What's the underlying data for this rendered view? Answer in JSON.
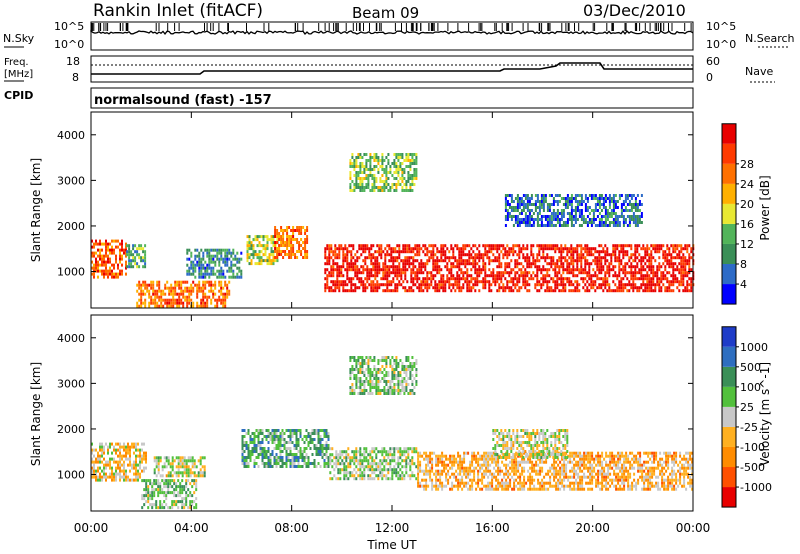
{
  "header": {
    "station": "Rankin Inlet (fitACF)",
    "beam": "Beam 09",
    "date": "03/Dec/2010"
  },
  "noise_panel": {
    "left_label": "N.Sky",
    "right_label": "N.Search",
    "left_ticks": [
      "10^5",
      "10^0"
    ],
    "right_ticks": [
      "10^5",
      "10^0"
    ]
  },
  "freq_panel": {
    "left_label_1": "Freq.",
    "left_label_2": "[MHz]",
    "right_label": "Nave",
    "left_ticks": [
      "18",
      "8"
    ],
    "right_ticks": [
      "60",
      "0"
    ]
  },
  "cpid": {
    "label": "CPID",
    "value": "normalsound (fast) -157"
  },
  "x_ticks": [
    "00:00",
    "04:00",
    "08:00",
    "12:00",
    "16:00",
    "20:00",
    "00:00"
  ],
  "x_label": "Time UT",
  "y_ticks": [
    "1000",
    "2000",
    "3000",
    "4000"
  ],
  "colors": {
    "power": [
      "#0000ff",
      "#2d6bc7",
      "#3a8f57",
      "#52b45a",
      "#e8e833",
      "#ffb000",
      "#ff7000",
      "#ff3a00",
      "#e80000"
    ],
    "velocity": [
      "#e80000",
      "#ff5000",
      "#ff8c00",
      "#ffb020",
      "#c8c8c8",
      "#52c03c",
      "#3a8f57",
      "#2e6ec0",
      "#1e3cc8"
    ]
  },
  "chart_data": [
    {
      "type": "heatmap",
      "title": "",
      "xlabel": "",
      "ylabel": "Slant Range [km]",
      "xlim": [
        0,
        24
      ],
      "ylim": [
        200,
        4500
      ],
      "colorbar": {
        "label": "Power [dB]",
        "ticks": [
          "4",
          "8",
          "12",
          "16",
          "20",
          "24",
          "28"
        ],
        "range": [
          0,
          30
        ]
      },
      "regions": [
        {
          "t0": 0.0,
          "t1": 1.4,
          "r0": 900,
          "r1": 1700,
          "value": 24
        },
        {
          "t0": 1.4,
          "t1": 2.2,
          "r0": 1100,
          "r1": 1600,
          "value": 10
        },
        {
          "t0": 1.8,
          "t1": 5.5,
          "r0": 250,
          "r1": 800,
          "value": 22
        },
        {
          "t0": 3.8,
          "t1": 6.0,
          "r0": 900,
          "r1": 1500,
          "value": 8
        },
        {
          "t0": 6.2,
          "t1": 7.4,
          "r0": 1200,
          "r1": 1800,
          "value": 14
        },
        {
          "t0": 7.3,
          "t1": 8.6,
          "r0": 1300,
          "r1": 2000,
          "value": 22
        },
        {
          "t0": 9.3,
          "t1": 24.0,
          "r0": 600,
          "r1": 1600,
          "value": 28
        },
        {
          "t0": 10.3,
          "t1": 13.0,
          "r0": 2800,
          "r1": 3600,
          "value": 12
        },
        {
          "t0": 16.5,
          "t1": 22.0,
          "r0": 2000,
          "r1": 2700,
          "value": 6
        }
      ]
    },
    {
      "type": "heatmap",
      "title": "",
      "xlabel": "Time UT",
      "ylabel": "Slant Range [km]",
      "xlim": [
        0,
        24
      ],
      "ylim": [
        200,
        4500
      ],
      "colorbar": {
        "label": "Velocity [m s^-1]",
        "ticks": [
          "-1000",
          "-500",
          "-100",
          "-25",
          "25",
          "100",
          "500",
          "1000"
        ],
        "range": [
          -1200,
          1200
        ]
      },
      "regions": [
        {
          "t0": 0.0,
          "t1": 2.2,
          "r0": 900,
          "r1": 1700,
          "value": -200
        },
        {
          "t0": 2.0,
          "t1": 4.2,
          "r0": 250,
          "r1": 900,
          "value": 200
        },
        {
          "t0": 2.5,
          "t1": 4.5,
          "r0": 1000,
          "r1": 1400,
          "value": 0
        },
        {
          "t0": 6.0,
          "t1": 9.5,
          "r0": 1200,
          "r1": 2000,
          "value": 400
        },
        {
          "t0": 9.5,
          "t1": 13.0,
          "r0": 900,
          "r1": 1600,
          "value": 150
        },
        {
          "t0": 13.0,
          "t1": 24.0,
          "r0": 700,
          "r1": 1500,
          "value": -300
        },
        {
          "t0": 16.0,
          "t1": 19.0,
          "r0": 1400,
          "r1": 2000,
          "value": 0
        },
        {
          "t0": 10.3,
          "t1": 13.0,
          "r0": 2800,
          "r1": 3600,
          "value": 200
        }
      ]
    }
  ]
}
